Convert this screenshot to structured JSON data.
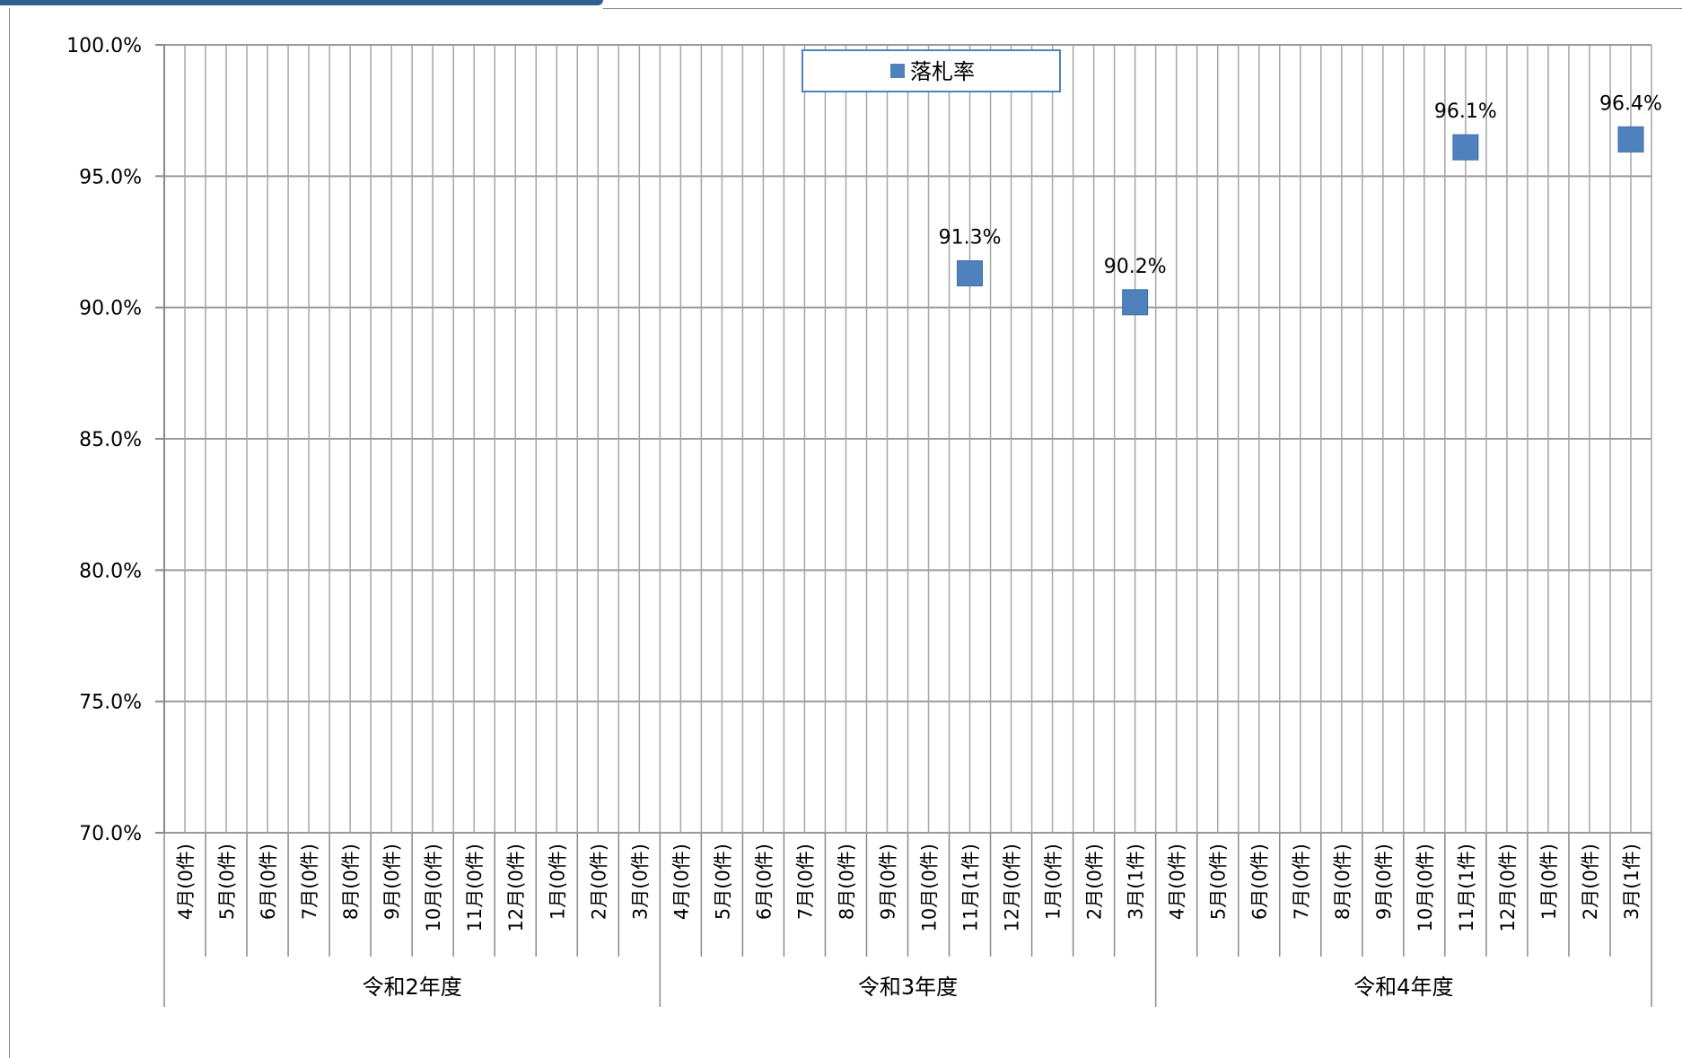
{
  "chart_data": {
    "type": "scatter",
    "legend": {
      "label": "落札率",
      "position": "top-center"
    },
    "y_axis": {
      "ticks": [
        "100.0%",
        "95.0%",
        "90.0%",
        "85.0%",
        "80.0%",
        "75.0%",
        "70.0%"
      ],
      "ylim": [
        70,
        100
      ],
      "unit": "%"
    },
    "grid": true,
    "groups": [
      {
        "name": "令和2年度",
        "categories": [
          "4月(0件)",
          "5月(0件)",
          "6月(0件)",
          "7月(0件)",
          "8月(0件)",
          "9月(0件)",
          "10月(0件)",
          "11月(0件)",
          "12月(0件)",
          "1月(0件)",
          "2月(0件)",
          "3月(0件)"
        ]
      },
      {
        "name": "令和3年度",
        "categories": [
          "4月(0件)",
          "5月(0件)",
          "6月(0件)",
          "7月(0件)",
          "8月(0件)",
          "9月(0件)",
          "10月(0件)",
          "11月(1件)",
          "12月(0件)",
          "1月(0件)",
          "2月(0件)",
          "3月(1件)"
        ]
      },
      {
        "name": "令和4年度",
        "categories": [
          "4月(0件)",
          "5月(0件)",
          "6月(0件)",
          "7月(0件)",
          "8月(0件)",
          "9月(0件)",
          "10月(0件)",
          "11月(1件)",
          "12月(0件)",
          "1月(0件)",
          "2月(0件)",
          "3月(1件)"
        ]
      }
    ],
    "series": [
      {
        "name": "落札率",
        "color": "#4f81bd",
        "marker": "square",
        "points": [
          {
            "group": "令和3年度",
            "category": "11月(1件)",
            "value": 91.3,
            "label": "91.3%"
          },
          {
            "group": "令和3年度",
            "category": "3月(1件)",
            "value": 90.2,
            "label": "90.2%"
          },
          {
            "group": "令和4年度",
            "category": "11月(1件)",
            "value": 96.1,
            "label": "96.1%"
          },
          {
            "group": "令和4年度",
            "category": "3月(1件)",
            "value": 96.4,
            "label": "96.4%"
          }
        ]
      }
    ]
  }
}
